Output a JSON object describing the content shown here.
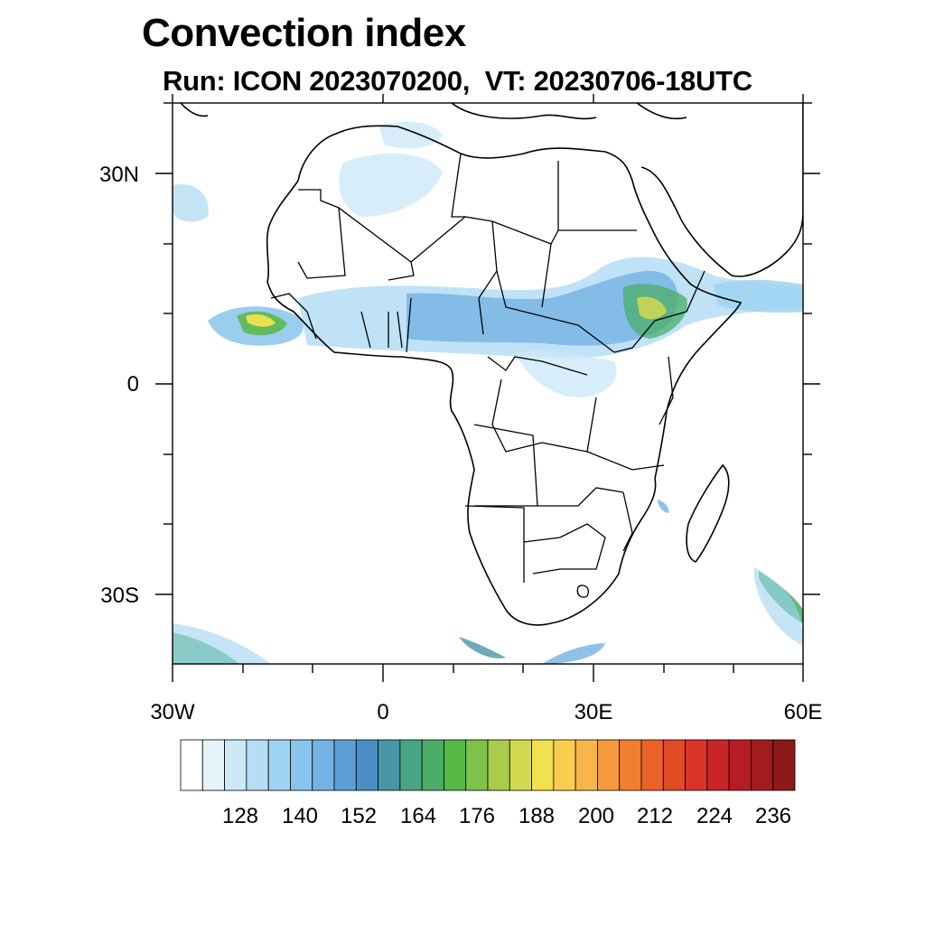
{
  "title": "Convection index",
  "subtitle": "Run: ICON 2023070200,  VT: 20230706-18UTC",
  "axes": {
    "y_tick_labels": [
      "30N",
      "0",
      "30S"
    ],
    "x_tick_labels": [
      "30W",
      "0",
      "30E",
      "60E"
    ],
    "lon_range": [
      -30,
      60
    ],
    "lat_range": [
      -40,
      40
    ]
  },
  "colorbar": {
    "labels": [
      "128",
      "140",
      "152",
      "164",
      "176",
      "188",
      "200",
      "212",
      "224",
      "236"
    ],
    "colors": [
      "#ffffff",
      "#e6f3fb",
      "#cde8f7",
      "#b5ddf4",
      "#9ed3f2",
      "#89c4ec",
      "#73b3e3",
      "#5d9ed6",
      "#4b8ec4",
      "#4896a6",
      "#47a585",
      "#4aae69",
      "#58b845",
      "#7ec24a",
      "#a9cc4c",
      "#d3d94e",
      "#f2e14f",
      "#f9cd4e",
      "#f8b548",
      "#f59a3c",
      "#f27f31",
      "#ea6228",
      "#e04a25",
      "#d83527",
      "#c92427",
      "#b71b25",
      "#a31a1f",
      "#8c1a18"
    ],
    "levels_note": ""
  }
}
